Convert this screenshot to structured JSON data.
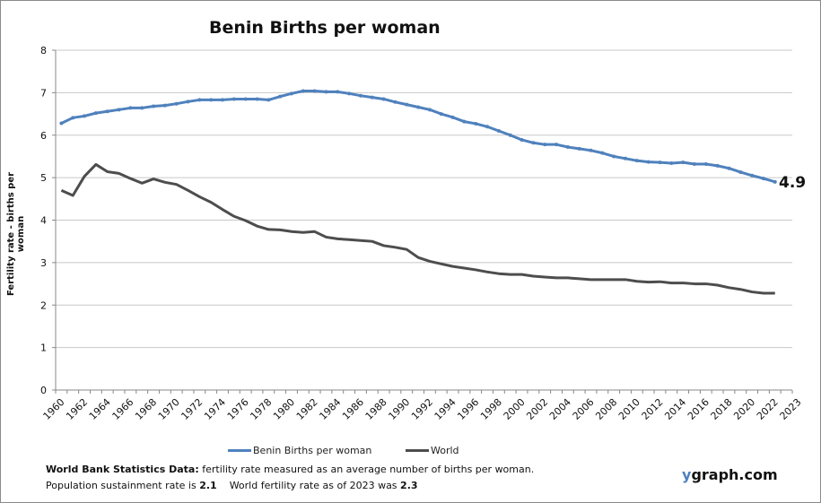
{
  "chart_data": {
    "type": "line",
    "title": "Benin Births per woman",
    "ylabel": "Fertility rate  - births per woman",
    "xlabel": "",
    "ylim": [
      0,
      8
    ],
    "yticks": [
      0,
      1,
      2,
      3,
      4,
      5,
      6,
      7,
      8
    ],
    "grid": true,
    "legend_placement": "bottom",
    "x": [
      1960,
      1961,
      1962,
      1963,
      1964,
      1965,
      1966,
      1967,
      1968,
      1969,
      1970,
      1971,
      1972,
      1973,
      1974,
      1975,
      1976,
      1977,
      1978,
      1979,
      1980,
      1981,
      1982,
      1983,
      1984,
      1985,
      1986,
      1987,
      1988,
      1989,
      1990,
      1991,
      1992,
      1993,
      1994,
      1995,
      1996,
      1997,
      1998,
      1999,
      2000,
      2001,
      2002,
      2003,
      2004,
      2005,
      2006,
      2007,
      2008,
      2009,
      2010,
      2011,
      2012,
      2013,
      2014,
      2015,
      2016,
      2017,
      2018,
      2019,
      2020,
      2021,
      2022
    ],
    "xtick_labels": [
      "1960",
      "1962",
      "1964",
      "1966",
      "1968",
      "1970",
      "1972",
      "1974",
      "1976",
      "1978",
      "1980",
      "1982",
      "1984",
      "1986",
      "1988",
      "1990",
      "1992",
      "1994",
      "1996",
      "1998",
      "2000",
      "2002",
      "2004",
      "2006",
      "2008",
      "2010",
      "2012",
      "2014",
      "2016",
      "2018",
      "2020",
      "2022",
      "2023"
    ],
    "series": [
      {
        "name": "Benin Births per woman",
        "color": "#4f81bd",
        "markers": true,
        "values": [
          6.28,
          6.41,
          6.45,
          6.52,
          6.56,
          6.6,
          6.64,
          6.64,
          6.68,
          6.7,
          6.74,
          6.79,
          6.83,
          6.83,
          6.83,
          6.85,
          6.85,
          6.85,
          6.83,
          6.91,
          6.98,
          7.04,
          7.04,
          7.02,
          7.02,
          6.98,
          6.93,
          6.89,
          6.85,
          6.78,
          6.72,
          6.66,
          6.6,
          6.5,
          6.42,
          6.32,
          6.27,
          6.2,
          6.1,
          6.0,
          5.89,
          5.82,
          5.78,
          5.78,
          5.72,
          5.68,
          5.64,
          5.58,
          5.5,
          5.45,
          5.4,
          5.37,
          5.36,
          5.34,
          5.36,
          5.32,
          5.32,
          5.28,
          5.22,
          5.13,
          5.05,
          4.98,
          4.9
        ]
      },
      {
        "name": "World",
        "color": "#4d4d4d",
        "markers": false,
        "values": [
          4.7,
          4.58,
          5.03,
          5.31,
          5.14,
          5.1,
          4.98,
          4.87,
          4.97,
          4.89,
          4.84,
          4.7,
          4.55,
          4.42,
          4.25,
          4.09,
          3.99,
          3.86,
          3.78,
          3.77,
          3.73,
          3.71,
          3.73,
          3.6,
          3.56,
          3.54,
          3.52,
          3.5,
          3.4,
          3.36,
          3.31,
          3.12,
          3.03,
          2.97,
          2.91,
          2.87,
          2.83,
          2.78,
          2.74,
          2.72,
          2.72,
          2.68,
          2.66,
          2.64,
          2.64,
          2.62,
          2.6,
          2.6,
          2.6,
          2.6,
          2.56,
          2.54,
          2.55,
          2.52,
          2.52,
          2.5,
          2.5,
          2.47,
          2.41,
          2.37,
          2.31,
          2.28,
          2.28
        ]
      }
    ],
    "annotations": [
      {
        "text": "4.9",
        "x": 2022,
        "y": 4.9
      }
    ]
  },
  "footer": {
    "line1_bold": "World Bank Statistics Data:",
    "line1_rest": " fertility rate measured as an average number  of births per woman.",
    "line2_a": "Population sustainment rate is ",
    "line2_b": "2.1",
    "line2_c": "    World fertility rate as of 2023 was ",
    "line2_d": "2.3"
  },
  "brand": {
    "y": "y",
    "rest": "graph.com"
  }
}
